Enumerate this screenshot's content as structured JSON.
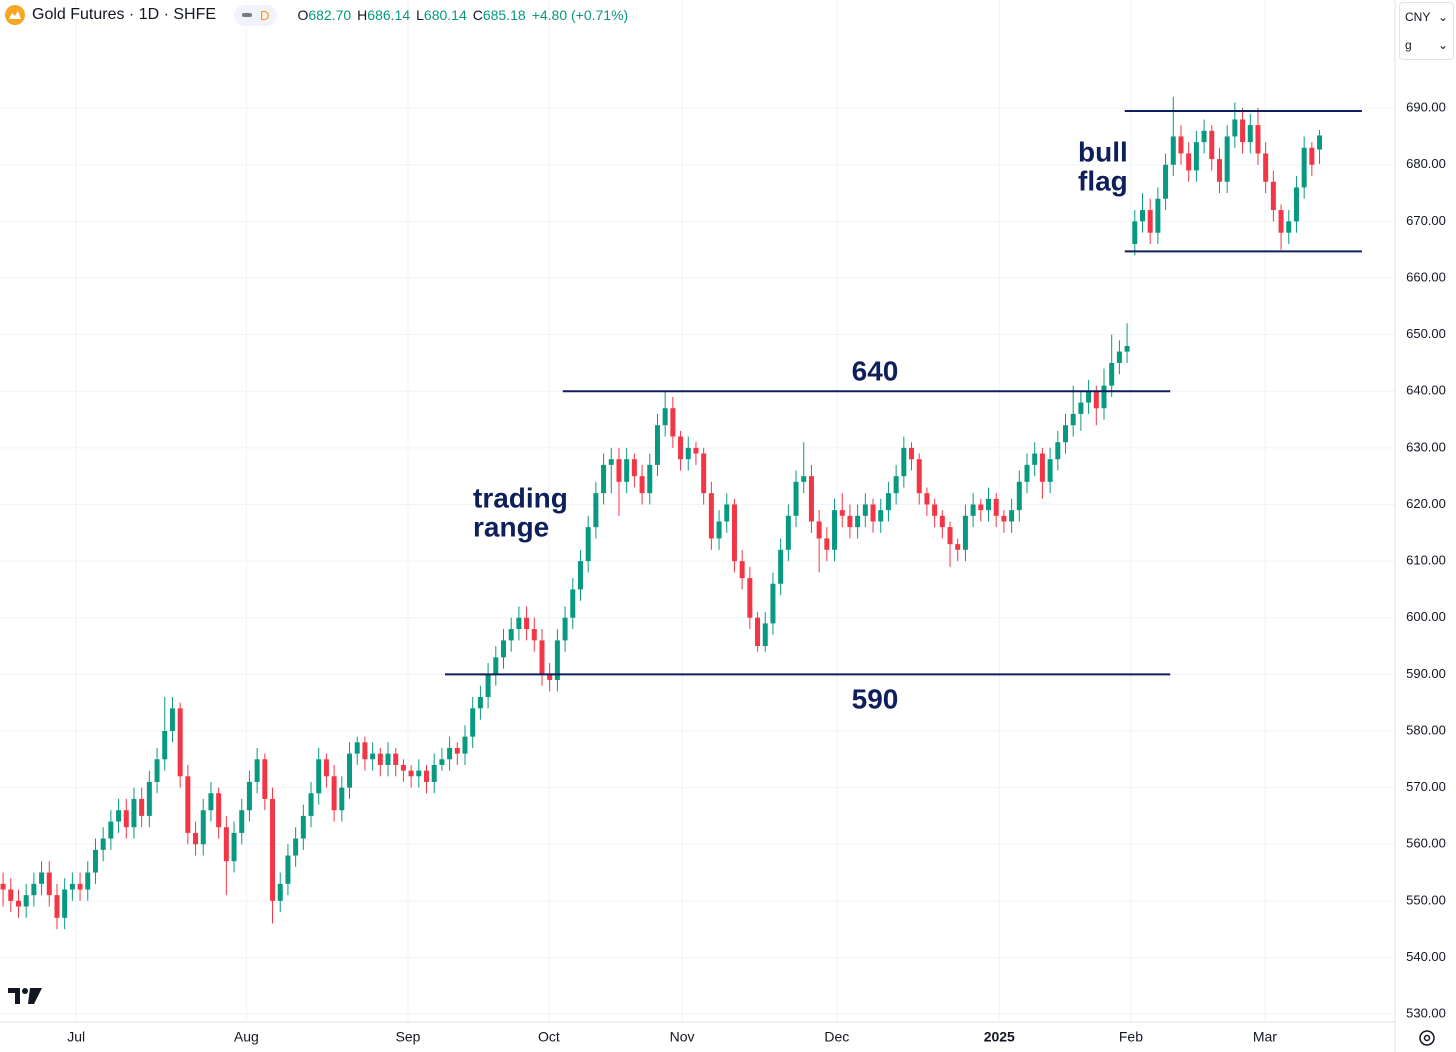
{
  "header": {
    "symbol": "Gold Futures · 1D · SHFE",
    "badge": "D",
    "open": {
      "label": "O",
      "value": "682.70"
    },
    "high": {
      "label": "H",
      "value": "686.14"
    },
    "low": {
      "label": "L",
      "value": "680.14"
    },
    "close": {
      "label": "C",
      "value": "685.18"
    },
    "change": "+4.80 (+0.71%)"
  },
  "selector": {
    "currency": "CNY",
    "unit": "g"
  },
  "chart_data": {
    "type": "candlestick",
    "colors": {
      "up": "#089981",
      "down": "#f23645",
      "annotation": "#0f1f5c",
      "grid": "#f0f3fa"
    },
    "grid": true,
    "xlim": [
      -0.4,
      180.8
    ],
    "xticks": [
      {
        "value": 9.5,
        "label": "Jul"
      },
      {
        "value": 31.6,
        "label": "Aug"
      },
      {
        "value": 52.6,
        "label": "Sep"
      },
      {
        "value": 70.9,
        "label": "Oct"
      },
      {
        "value": 88.2,
        "label": "Nov"
      },
      {
        "value": 108.3,
        "label": "Dec"
      },
      {
        "value": 129.4,
        "label": "2025",
        "bold": true
      },
      {
        "value": 146.5,
        "label": "Feb"
      },
      {
        "value": 163.9,
        "label": "Mar"
      }
    ],
    "ylim": [
      528.6,
      709.1
    ],
    "yticks": [
      {
        "value": 690,
        "label": "690.00"
      },
      {
        "value": 680,
        "label": "680.00"
      },
      {
        "value": 670,
        "label": "670.00"
      },
      {
        "value": 660,
        "label": "660.00"
      },
      {
        "value": 650,
        "label": "650.00"
      },
      {
        "value": 640,
        "label": "640.00"
      },
      {
        "value": 630,
        "label": "630.00"
      },
      {
        "value": 620,
        "label": "620.00"
      },
      {
        "value": 610,
        "label": "610.00"
      },
      {
        "value": 600,
        "label": "600.00"
      },
      {
        "value": 590,
        "label": "590.00"
      },
      {
        "value": 580,
        "label": "580.00"
      },
      {
        "value": 570,
        "label": "570.00"
      },
      {
        "value": 560,
        "label": "560.00"
      },
      {
        "value": 550,
        "label": "550.00"
      },
      {
        "value": 540,
        "label": "540.00"
      },
      {
        "value": 530,
        "label": "530.00"
      }
    ],
    "ohlc": [
      [
        553,
        555,
        549,
        552
      ],
      [
        552,
        554,
        548,
        550
      ],
      [
        550,
        552,
        547,
        549
      ],
      [
        549,
        553,
        547,
        551
      ],
      [
        551,
        555,
        549,
        553
      ],
      [
        553,
        557,
        551,
        555
      ],
      [
        555,
        557,
        549,
        551
      ],
      [
        551,
        553,
        545,
        547
      ],
      [
        547,
        554,
        545,
        552
      ],
      [
        552,
        555,
        550,
        553
      ],
      [
        553,
        555,
        550,
        552
      ],
      [
        552,
        557,
        550,
        555
      ],
      [
        555,
        561,
        553,
        559
      ],
      [
        559,
        563,
        557,
        561
      ],
      [
        561,
        566,
        559,
        564
      ],
      [
        564,
        568,
        562,
        566
      ],
      [
        566,
        568,
        561,
        563
      ],
      [
        563,
        570,
        561,
        568
      ],
      [
        568,
        570,
        563,
        565
      ],
      [
        565,
        573,
        563,
        571
      ],
      [
        571,
        577,
        569,
        575
      ],
      [
        575,
        586,
        573,
        580
      ],
      [
        580,
        586,
        578,
        584
      ],
      [
        584,
        585,
        570,
        572
      ],
      [
        572,
        574,
        560,
        562
      ],
      [
        562,
        564,
        558,
        560
      ],
      [
        560,
        568,
        558,
        566
      ],
      [
        566,
        571,
        564,
        569
      ],
      [
        569,
        570,
        561,
        563
      ],
      [
        563,
        565,
        551,
        557
      ],
      [
        557,
        564,
        555,
        562
      ],
      [
        562,
        568,
        560,
        566
      ],
      [
        566,
        573,
        564,
        571
      ],
      [
        571,
        577,
        569,
        575
      ],
      [
        575,
        576,
        566,
        568
      ],
      [
        568,
        570,
        546,
        550
      ],
      [
        550,
        555,
        548,
        553
      ],
      [
        553,
        560,
        551,
        558
      ],
      [
        558,
        563,
        556,
        561
      ],
      [
        561,
        567,
        559,
        565
      ],
      [
        565,
        571,
        563,
        569
      ],
      [
        569,
        577,
        567,
        575
      ],
      [
        575,
        576,
        570,
        572
      ],
      [
        572,
        574,
        564,
        566
      ],
      [
        566,
        572,
        564,
        570
      ],
      [
        570,
        578,
        568,
        576
      ],
      [
        576,
        579,
        574,
        578
      ],
      [
        578,
        579,
        573,
        575
      ],
      [
        575,
        578,
        573,
        576
      ],
      [
        576,
        577,
        572,
        574
      ],
      [
        574,
        578,
        572,
        576
      ],
      [
        576,
        577,
        572,
        574
      ],
      [
        574,
        575,
        571,
        573
      ],
      [
        573,
        574,
        570,
        572
      ],
      [
        572,
        575,
        570,
        573
      ],
      [
        573,
        574,
        569,
        571
      ],
      [
        571,
        576,
        569,
        574
      ],
      [
        574,
        577,
        573,
        575
      ],
      [
        575,
        579,
        573,
        577
      ],
      [
        577,
        578,
        574,
        576
      ],
      [
        576,
        581,
        574,
        579
      ],
      [
        579,
        586,
        577,
        584
      ],
      [
        584,
        588,
        582,
        586
      ],
      [
        586,
        592,
        584,
        590
      ],
      [
        590,
        595,
        588,
        593
      ],
      [
        593,
        598,
        591,
        596
      ],
      [
        596,
        600,
        594,
        598
      ],
      [
        598,
        602,
        596,
        600
      ],
      [
        600,
        602,
        596,
        598
      ],
      [
        598,
        600,
        594,
        596
      ],
      [
        596,
        598,
        588,
        590
      ],
      [
        590,
        592,
        587,
        589
      ],
      [
        589,
        598,
        587,
        596
      ],
      [
        596,
        602,
        594,
        600
      ],
      [
        600,
        607,
        598,
        605
      ],
      [
        605,
        612,
        603,
        610
      ],
      [
        610,
        618,
        608,
        616
      ],
      [
        616,
        624,
        614,
        622
      ],
      [
        622,
        629,
        620,
        627
      ],
      [
        627,
        630,
        622,
        628
      ],
      [
        628,
        630,
        618,
        624
      ],
      [
        624,
        630,
        622,
        628
      ],
      [
        628,
        629,
        623,
        625
      ],
      [
        625,
        627,
        620,
        622
      ],
      [
        622,
        629,
        620,
        627
      ],
      [
        627,
        636,
        625,
        634
      ],
      [
        634,
        640,
        632,
        637
      ],
      [
        637,
        639,
        630,
        632
      ],
      [
        632,
        633,
        626,
        628
      ],
      [
        628,
        632,
        626,
        630
      ],
      [
        630,
        631,
        627,
        629
      ],
      [
        629,
        630,
        620,
        622
      ],
      [
        622,
        624,
        612,
        614
      ],
      [
        614,
        619,
        612,
        617
      ],
      [
        617,
        622,
        615,
        620
      ],
      [
        620,
        621,
        608,
        610
      ],
      [
        610,
        612,
        605,
        607
      ],
      [
        607,
        609,
        598,
        600
      ],
      [
        600,
        601,
        594,
        595
      ],
      [
        595,
        601,
        594,
        599
      ],
      [
        599,
        608,
        597,
        606
      ],
      [
        606,
        614,
        604,
        612
      ],
      [
        612,
        620,
        610,
        618
      ],
      [
        618,
        626,
        616,
        624
      ],
      [
        624,
        631,
        622,
        625
      ],
      [
        625,
        627,
        615,
        617
      ],
      [
        617,
        619,
        608,
        614
      ],
      [
        614,
        616,
        610,
        612
      ],
      [
        612,
        621,
        610,
        619
      ],
      [
        619,
        622,
        616,
        618
      ],
      [
        618,
        620,
        614,
        616
      ],
      [
        616,
        620,
        614,
        618
      ],
      [
        618,
        622,
        616,
        620
      ],
      [
        620,
        621,
        615,
        617
      ],
      [
        617,
        621,
        615,
        619
      ],
      [
        619,
        624,
        617,
        622
      ],
      [
        622,
        627,
        620,
        625
      ],
      [
        625,
        632,
        623,
        630
      ],
      [
        630,
        631,
        626,
        628
      ],
      [
        628,
        629,
        620,
        622
      ],
      [
        622,
        623,
        618,
        620
      ],
      [
        620,
        621,
        616,
        618
      ],
      [
        618,
        619,
        614,
        616
      ],
      [
        616,
        617,
        609,
        613
      ],
      [
        613,
        614,
        610,
        612
      ],
      [
        612,
        620,
        610,
        618
      ],
      [
        618,
        622,
        616,
        620
      ],
      [
        620,
        621,
        617,
        619
      ],
      [
        619,
        623,
        617,
        621
      ],
      [
        621,
        622,
        616,
        618
      ],
      [
        618,
        619,
        615,
        617
      ],
      [
        617,
        621,
        615,
        619
      ],
      [
        619,
        626,
        617,
        624
      ],
      [
        624,
        629,
        622,
        627
      ],
      [
        627,
        631,
        625,
        629
      ],
      [
        629,
        630,
        621,
        624
      ],
      [
        624,
        630,
        622,
        628
      ],
      [
        628,
        633,
        626,
        631
      ],
      [
        631,
        636,
        629,
        634
      ],
      [
        634,
        641,
        632,
        636
      ],
      [
        636,
        640,
        633,
        638
      ],
      [
        638,
        642,
        636,
        640
      ],
      [
        640,
        641,
        634,
        637
      ],
      [
        637,
        644,
        635,
        641
      ],
      [
        641,
        650,
        639,
        645
      ],
      [
        645,
        649,
        643,
        647
      ],
      [
        647,
        652,
        645,
        648
      ],
      [
        666,
        672,
        664,
        670
      ],
      [
        670,
        675,
        668,
        672
      ],
      [
        672,
        674,
        666,
        668
      ],
      [
        668,
        676,
        666,
        674
      ],
      [
        674,
        682,
        672,
        680
      ],
      [
        680,
        692,
        678,
        685
      ],
      [
        685,
        687,
        680,
        682
      ],
      [
        682,
        684,
        677,
        679
      ],
      [
        679,
        686,
        677,
        684
      ],
      [
        684,
        688,
        682,
        686
      ],
      [
        686,
        687,
        679,
        681
      ],
      [
        681,
        683,
        675,
        677
      ],
      [
        677,
        687,
        675,
        685
      ],
      [
        685,
        691,
        683,
        688
      ],
      [
        688,
        690,
        682,
        684
      ],
      [
        684,
        689,
        682,
        687
      ],
      [
        687,
        690,
        680,
        682
      ],
      [
        682,
        684,
        675,
        677
      ],
      [
        677,
        679,
        670,
        672
      ],
      [
        672,
        673,
        665,
        668
      ],
      [
        668,
        672,
        666,
        670
      ],
      [
        670,
        678,
        668,
        676
      ],
      [
        676,
        685,
        674,
        683
      ],
      [
        683,
        684,
        678,
        680
      ],
      [
        682.7,
        686.14,
        680.14,
        685.18
      ]
    ],
    "annotations": {
      "lines": [
        {
          "value": 640,
          "from": 72.7,
          "to": 151.6
        },
        {
          "value": 590,
          "from": 57.4,
          "to": 151.6
        },
        {
          "value": 689.5,
          "from": 145.7,
          "to": 176.5
        },
        {
          "value": 664.7,
          "from": 145.7,
          "to": 176.5
        }
      ],
      "texts": [
        [
          "trading",
          "range"
        ],
        [
          "bull",
          "flag"
        ]
      ]
    }
  }
}
